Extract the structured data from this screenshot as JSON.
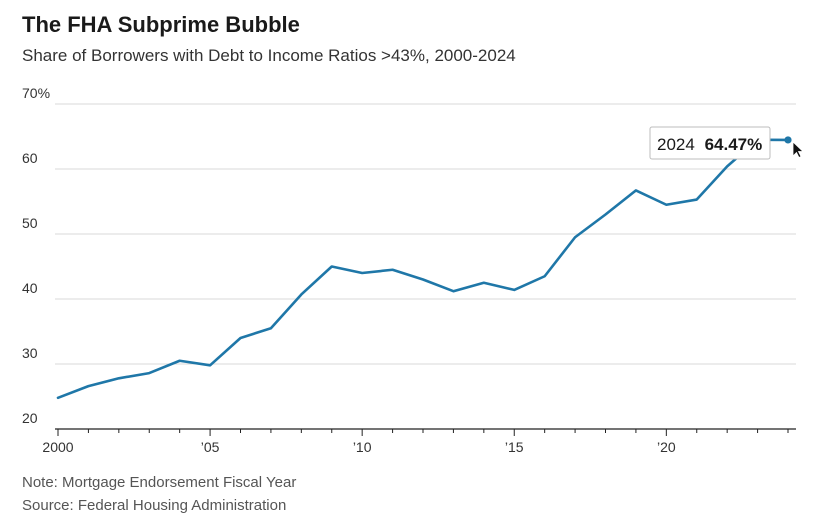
{
  "title": "The FHA Subprime Bubble",
  "subtitle": "Share of Borrowers with Debt to Income Ratios >43%, 2000-2024",
  "notes": {
    "note": "Note: Mortgage Endorsement Fiscal Year",
    "source": "Source: Federal Housing Administration"
  },
  "tooltip": {
    "year": "2024",
    "value": "64.47%"
  },
  "colors": {
    "line": "#1f77a8",
    "grid": "#d9d9d9",
    "axis": "#222222"
  },
  "chart_data": {
    "type": "line",
    "title": "The FHA Subprime Bubble",
    "subtitle": "Share of Borrowers with Debt to Income Ratios >43%, 2000-2024",
    "xlabel": "",
    "ylabel": "",
    "xlim": [
      2000,
      2024
    ],
    "ylim": [
      20,
      70
    ],
    "grid": true,
    "y_ticks": [
      {
        "value": 70,
        "label": "70%"
      },
      {
        "value": 60,
        "label": "60"
      },
      {
        "value": 50,
        "label": "50"
      },
      {
        "value": 40,
        "label": "40"
      },
      {
        "value": 30,
        "label": "30"
      },
      {
        "value": 20,
        "label": "20"
      }
    ],
    "x_ticks": [
      {
        "value": 2000,
        "label": "2000"
      },
      {
        "value": 2005,
        "label": "’05"
      },
      {
        "value": 2010,
        "label": "’10"
      },
      {
        "value": 2015,
        "label": "’15"
      },
      {
        "value": 2020,
        "label": "’20"
      }
    ],
    "series": [
      {
        "x": [
          2000,
          2001,
          2002,
          2003,
          2004,
          2005,
          2006,
          2007,
          2008,
          2009,
          2010,
          2011,
          2012,
          2013,
          2014,
          2015,
          2016,
          2017,
          2018,
          2019,
          2020,
          2021,
          2022,
          2023,
          2024
        ],
        "values": [
          24.8,
          26.6,
          27.8,
          28.6,
          30.5,
          29.8,
          34.0,
          35.5,
          40.7,
          45.0,
          44.0,
          44.5,
          43.0,
          41.2,
          42.5,
          41.4,
          43.5,
          49.5,
          53.0,
          56.7,
          54.5,
          55.3,
          60.4,
          64.5,
          64.47
        ]
      }
    ],
    "highlight": {
      "x": 2024,
      "y": 64.47
    }
  }
}
